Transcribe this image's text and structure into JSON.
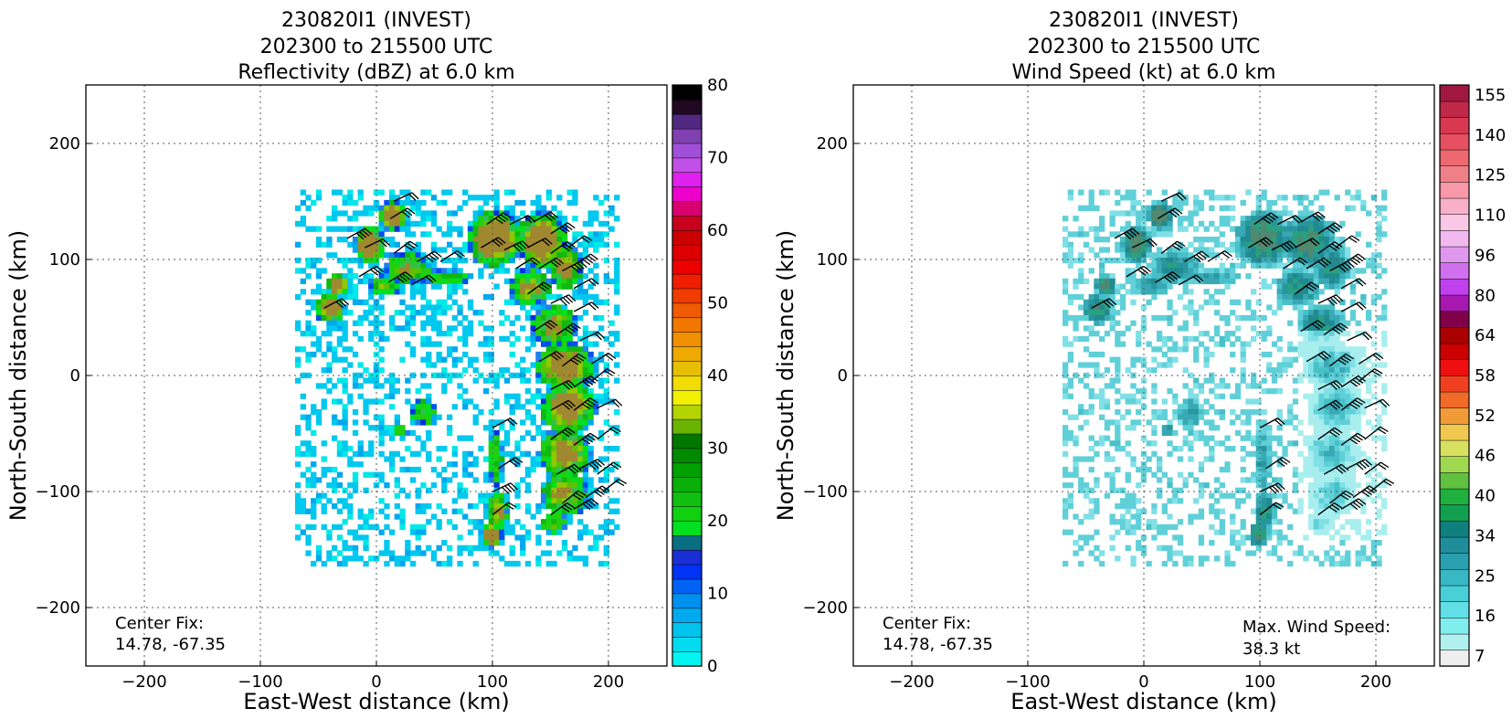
{
  "panels": [
    {
      "title_lines": [
        "230820I1 (INVEST)",
        "202300 to 215500 UTC",
        "Reflectivity (dBZ) at 6.0 km"
      ],
      "center_fix": [
        "Center Fix:",
        "14.78, -67.35"
      ],
      "max_wind": null,
      "colorbar": {
        "tick_labels": [
          "0",
          "10",
          "20",
          "30",
          "40",
          "50",
          "60",
          "70",
          "80"
        ],
        "colors": [
          "#00f5f0",
          "#00dcee",
          "#00c3ee",
          "#00aaee",
          "#0091ee",
          "#0062f5",
          "#0033f5",
          "#1a2ed6",
          "#0a6e82",
          "#00e020",
          "#10d010",
          "#10c010",
          "#08b008",
          "#00a000",
          "#008a00",
          "#007800",
          "#6ab400",
          "#b4d400",
          "#f0f000",
          "#f0dc00",
          "#e6c000",
          "#eeaa00",
          "#f09000",
          "#f07800",
          "#f05a00",
          "#f03c00",
          "#f01e00",
          "#ee0000",
          "#dc0000",
          "#cc0000",
          "#c8001c",
          "#d8006e",
          "#ee00cc",
          "#e020ee",
          "#c050e6",
          "#a050d8",
          "#8040b0",
          "#502880",
          "#200820",
          "#000000"
        ]
      },
      "chart_data": {
        "type": "heatmap",
        "title": "230820I1 (INVEST) 202300 to 215500 UTC Reflectivity (dBZ) at 6.0 km",
        "xlabel": "East-West distance (km)",
        "ylabel": "North-South distance (km)",
        "xlim": [
          -250,
          250
        ],
        "ylim": [
          -250,
          250
        ],
        "xticks": [
          -200,
          -100,
          0,
          100,
          200
        ],
        "yticks": [
          -200,
          -100,
          0,
          100,
          200
        ],
        "grid": true,
        "colorbar_range": [
          0,
          80
        ],
        "colorbar_unit": "dBZ",
        "regions": [
          {
            "x": [
              -55,
              -20
            ],
            "y": [
              45,
              90
            ],
            "value": 12,
            "kind": "band"
          },
          {
            "x": [
              -25,
              10
            ],
            "y": [
              80,
              135
            ],
            "value": 18,
            "kind": "band"
          },
          {
            "x": [
              0,
              40
            ],
            "y": [
              60,
              155
            ],
            "value": 15,
            "kind": "band"
          },
          {
            "x": [
              40,
              90
            ],
            "y": [
              70,
              100
            ],
            "value": 8,
            "kind": "band"
          },
          {
            "x": [
              75,
              170
            ],
            "y": [
              60,
              150
            ],
            "value": 25,
            "kind": "band"
          },
          {
            "x": [
              125,
              200
            ],
            "y": [
              -130,
              110
            ],
            "value": 22,
            "kind": "band"
          },
          {
            "x": [
              90,
              110
            ],
            "y": [
              -150,
              -40
            ],
            "value": 12,
            "kind": "band"
          },
          {
            "x": [
              10,
              55
            ],
            "y": [
              -50,
              -5
            ],
            "value": 10,
            "kind": "band"
          }
        ],
        "wind_barbs_kt": [
          30,
          35,
          25,
          40
        ]
      }
    },
    {
      "title_lines": [
        "230820I1 (INVEST)",
        "202300 to 215500 UTC",
        "Wind Speed (kt) at 6.0 km"
      ],
      "center_fix": [
        "Center Fix:",
        "14.78, -67.35"
      ],
      "max_wind": [
        "Max. Wind Speed:",
        "38.3 kt"
      ],
      "colorbar": {
        "tick_labels": [
          "7",
          "16",
          "25",
          "34",
          "40",
          "46",
          "52",
          "58",
          "64",
          "80",
          "96",
          "110",
          "125",
          "140",
          "155"
        ],
        "colors": [
          "#eeeeee",
          "#b0f0ee",
          "#80eeee",
          "#60e0e6",
          "#48d0d8",
          "#38b8c4",
          "#2aa0ae",
          "#208e9a",
          "#10807e",
          "#10a050",
          "#20b040",
          "#60c040",
          "#a0d850",
          "#d8e060",
          "#f0c850",
          "#f09a38",
          "#f06a28",
          "#f04020",
          "#ee1010",
          "#cc0000",
          "#aa0000",
          "#80004a",
          "#a818b0",
          "#c040ee",
          "#d070ee",
          "#e098ee",
          "#f0b8ee",
          "#f8c8e6",
          "#f8b0c8",
          "#f898a8",
          "#f08088",
          "#ee6870",
          "#e65060",
          "#d83850",
          "#c02848",
          "#a01840"
        ]
      },
      "chart_data": {
        "type": "heatmap",
        "title": "230820I1 (INVEST) 202300 to 215500 UTC Wind Speed (kt) at 6.0 km",
        "xlabel": "East-West distance (km)",
        "ylabel": "North-South distance (km)",
        "xlim": [
          -250,
          250
        ],
        "ylim": [
          -250,
          250
        ],
        "xticks": [
          -200,
          -100,
          0,
          100,
          200
        ],
        "yticks": [
          -200,
          -100,
          0,
          100,
          200
        ],
        "grid": true,
        "colorbar_range": [
          7,
          155
        ],
        "colorbar_unit": "kt",
        "max_wind_speed_kt": 38.3,
        "regions": [
          {
            "x": [
              -55,
              -20
            ],
            "y": [
              45,
              90
            ],
            "value": 26,
            "kind": "band"
          },
          {
            "x": [
              -25,
              10
            ],
            "y": [
              80,
              135
            ],
            "value": 27,
            "kind": "band"
          },
          {
            "x": [
              0,
              40
            ],
            "y": [
              60,
              155
            ],
            "value": 26,
            "kind": "band"
          },
          {
            "x": [
              75,
              170
            ],
            "y": [
              60,
              150
            ],
            "value": 28,
            "kind": "band"
          },
          {
            "x": [
              125,
              200
            ],
            "y": [
              -130,
              110
            ],
            "value": 22,
            "kind": "band"
          },
          {
            "x": [
              90,
              110
            ],
            "y": [
              -150,
              -40
            ],
            "value": 20,
            "kind": "band"
          }
        ]
      }
    }
  ]
}
